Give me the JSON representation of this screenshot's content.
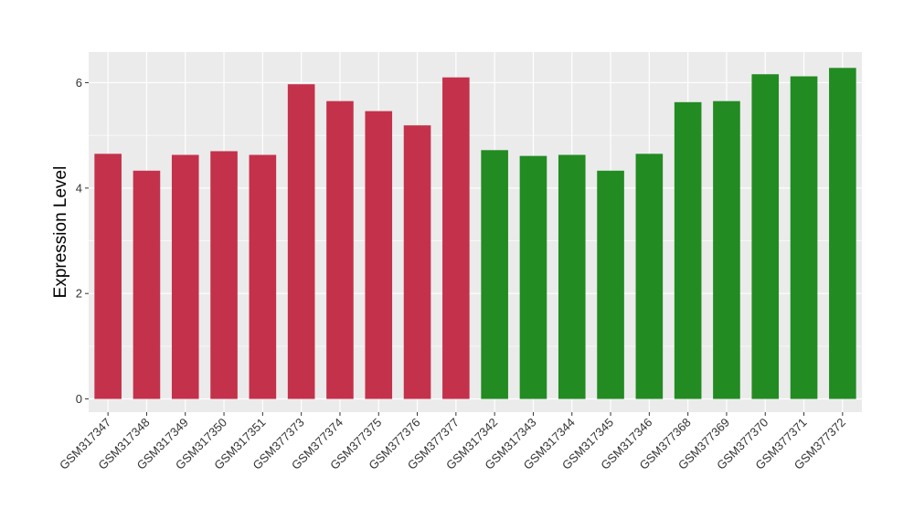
{
  "chart_data": {
    "type": "bar",
    "title": "",
    "xlabel": "",
    "ylabel": "Expression Level",
    "ylim": [
      -0.25,
      6.58
    ],
    "yticks": [
      0,
      2,
      4,
      6
    ],
    "grid": true,
    "legend": "none",
    "background_color": "#EBEBEB",
    "grid_color": "#FFFFFF",
    "colors": {
      "group_a": "#C4314B",
      "group_b": "#228B22"
    },
    "categories": [
      "GSM317347",
      "GSM317348",
      "GSM317349",
      "GSM317350",
      "GSM317351",
      "GSM377373",
      "GSM377374",
      "GSM377375",
      "GSM377376",
      "GSM377377",
      "GSM317342",
      "GSM317343",
      "GSM317344",
      "GSM317345",
      "GSM317346",
      "GSM377368",
      "GSM377369",
      "GSM377370",
      "GSM377371",
      "GSM377372"
    ],
    "values": [
      4.65,
      4.33,
      4.63,
      4.7,
      4.63,
      5.97,
      5.65,
      5.46,
      5.19,
      6.1,
      4.72,
      4.61,
      4.63,
      4.33,
      4.65,
      5.63,
      5.65,
      6.16,
      6.12,
      6.28
    ],
    "groups": [
      "group_a",
      "group_a",
      "group_a",
      "group_a",
      "group_a",
      "group_a",
      "group_a",
      "group_a",
      "group_a",
      "group_a",
      "group_b",
      "group_b",
      "group_b",
      "group_b",
      "group_b",
      "group_b",
      "group_b",
      "group_b",
      "group_b",
      "group_b"
    ]
  }
}
